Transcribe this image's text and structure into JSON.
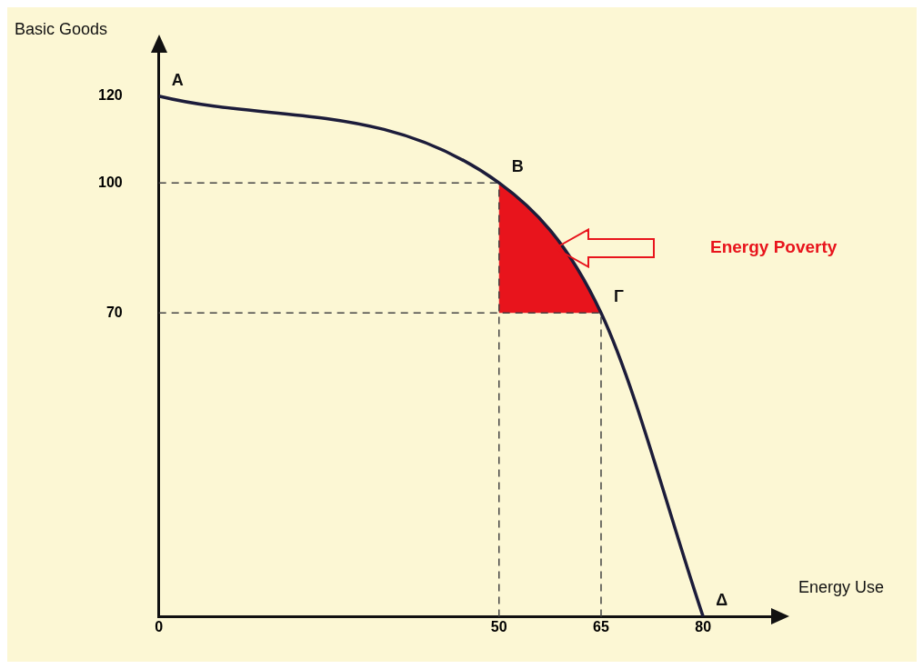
{
  "chart_data": {
    "type": "line",
    "xlabel": "Energy Use",
    "ylabel": "Basic Goods",
    "x": [
      0,
      50,
      65,
      80
    ],
    "series": [
      {
        "color": "#1c1c3a",
        "values": [
          120,
          100,
          70,
          0
        ]
      }
    ],
    "xlim": [
      0,
      90
    ],
    "ylim": [
      0,
      130
    ],
    "xticks": [
      0,
      50,
      65,
      80
    ],
    "yticks": [
      70,
      100,
      120
    ],
    "grid": false,
    "legend": false,
    "marker": "none",
    "line_style": "solid",
    "annotations": [
      {
        "text": "A",
        "x": 0,
        "y": 120
      },
      {
        "text": "B",
        "x": 50,
        "y": 100
      },
      {
        "text": "Γ",
        "x": 65,
        "y": 70
      },
      {
        "text": "Δ",
        "x": 80,
        "y": 0
      }
    ],
    "ref_lines": [
      {
        "axis": "y",
        "value": 100,
        "line_style": "dashed",
        "color": "#444444"
      },
      {
        "axis": "y",
        "value": 70,
        "line_style": "dashed",
        "color": "#444444"
      },
      {
        "axis": "x",
        "value": 50,
        "line_style": "dashed",
        "color": "#444444"
      },
      {
        "axis": "x",
        "value": 65,
        "line_style": "dashed",
        "color": "#444444"
      }
    ],
    "bands": [
      {
        "axis": "x",
        "from": 50,
        "to": 65,
        "label": "Energy Poverty",
        "color": "#e8141c"
      }
    ]
  }
}
